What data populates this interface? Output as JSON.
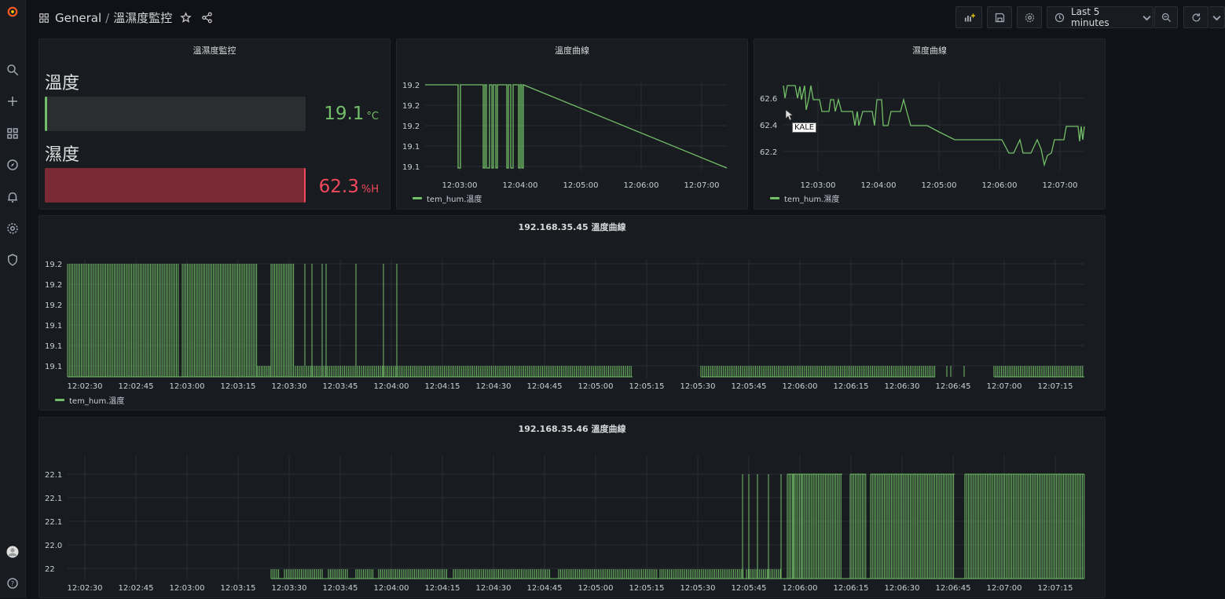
{
  "breadcrumb": {
    "folder": "General",
    "separator": "/",
    "dashboard": "溫濕度監控"
  },
  "toolbar": {
    "time_range": "Last 5 minutes"
  },
  "colors": {
    "green": "#73bf69",
    "red": "#f2495c",
    "red_fill": "#7a2a35"
  },
  "sidebar": {
    "icons": [
      "grafana-logo-icon",
      "search-icon",
      "plus-icon",
      "dashboards-icon",
      "explore-icon",
      "alerting-bell-icon",
      "gear-icon",
      "shield-icon",
      "user-avatar-icon",
      "help-icon"
    ]
  },
  "status_panel": {
    "title": "溫濕度監控",
    "temperature": {
      "label": "溫度",
      "value": "19.1",
      "unit": "°C",
      "fill_fraction": 0.01
    },
    "humidity": {
      "label": "濕度",
      "value": "62.3",
      "unit": "%H",
      "fill_fraction": 1.0
    }
  },
  "temp_panel": {
    "title": "溫度曲線",
    "yticks": [
      "19.2",
      "19.2",
      "19.2",
      "19.1",
      "19.1"
    ],
    "xticks": [
      "12:03:00",
      "12:04:00",
      "12:05:00",
      "12:06:00",
      "12:07:00"
    ],
    "legend": "tem_hum.溫度"
  },
  "hum_panel": {
    "title": "濕度曲線",
    "yticks": [
      "62.6",
      "62.4",
      "62.2"
    ],
    "xticks": [
      "12:03:00",
      "12:04:00",
      "12:05:00",
      "12:06:00",
      "12:07:00"
    ],
    "legend": "tem_hum.濕度",
    "tooltip": "KALE"
  },
  "wide_panel_1": {
    "title": "192.168.35.45 溫度曲線",
    "yticks": [
      "19.2",
      "19.2",
      "19.2",
      "19.1",
      "19.1",
      "19.1"
    ],
    "xticks": [
      "12:02:30",
      "12:02:45",
      "12:03:00",
      "12:03:15",
      "12:03:30",
      "12:03:45",
      "12:04:00",
      "12:04:15",
      "12:04:30",
      "12:04:45",
      "12:05:00",
      "12:05:15",
      "12:05:30",
      "12:05:45",
      "12:06:00",
      "12:06:15",
      "12:06:30",
      "12:06:45",
      "12:07:00",
      "12:07:15"
    ],
    "legend": "tem_hum.溫度"
  },
  "wide_panel_2": {
    "title": "192.168.35.46 溫度曲線",
    "yticks": [
      "22.1",
      "22.1",
      "22.1",
      "22.0",
      "22"
    ],
    "xticks": [
      "12:02:30",
      "12:02:45",
      "12:03:00",
      "12:03:15",
      "12:03:30",
      "12:03:45",
      "12:04:00",
      "12:04:15",
      "12:04:30",
      "12:04:45",
      "12:05:00",
      "12:05:15",
      "12:05:30",
      "12:05:45",
      "12:06:00",
      "12:06:15",
      "12:06:30",
      "12:06:45",
      "12:07:00",
      "12:07:15"
    ]
  }
}
